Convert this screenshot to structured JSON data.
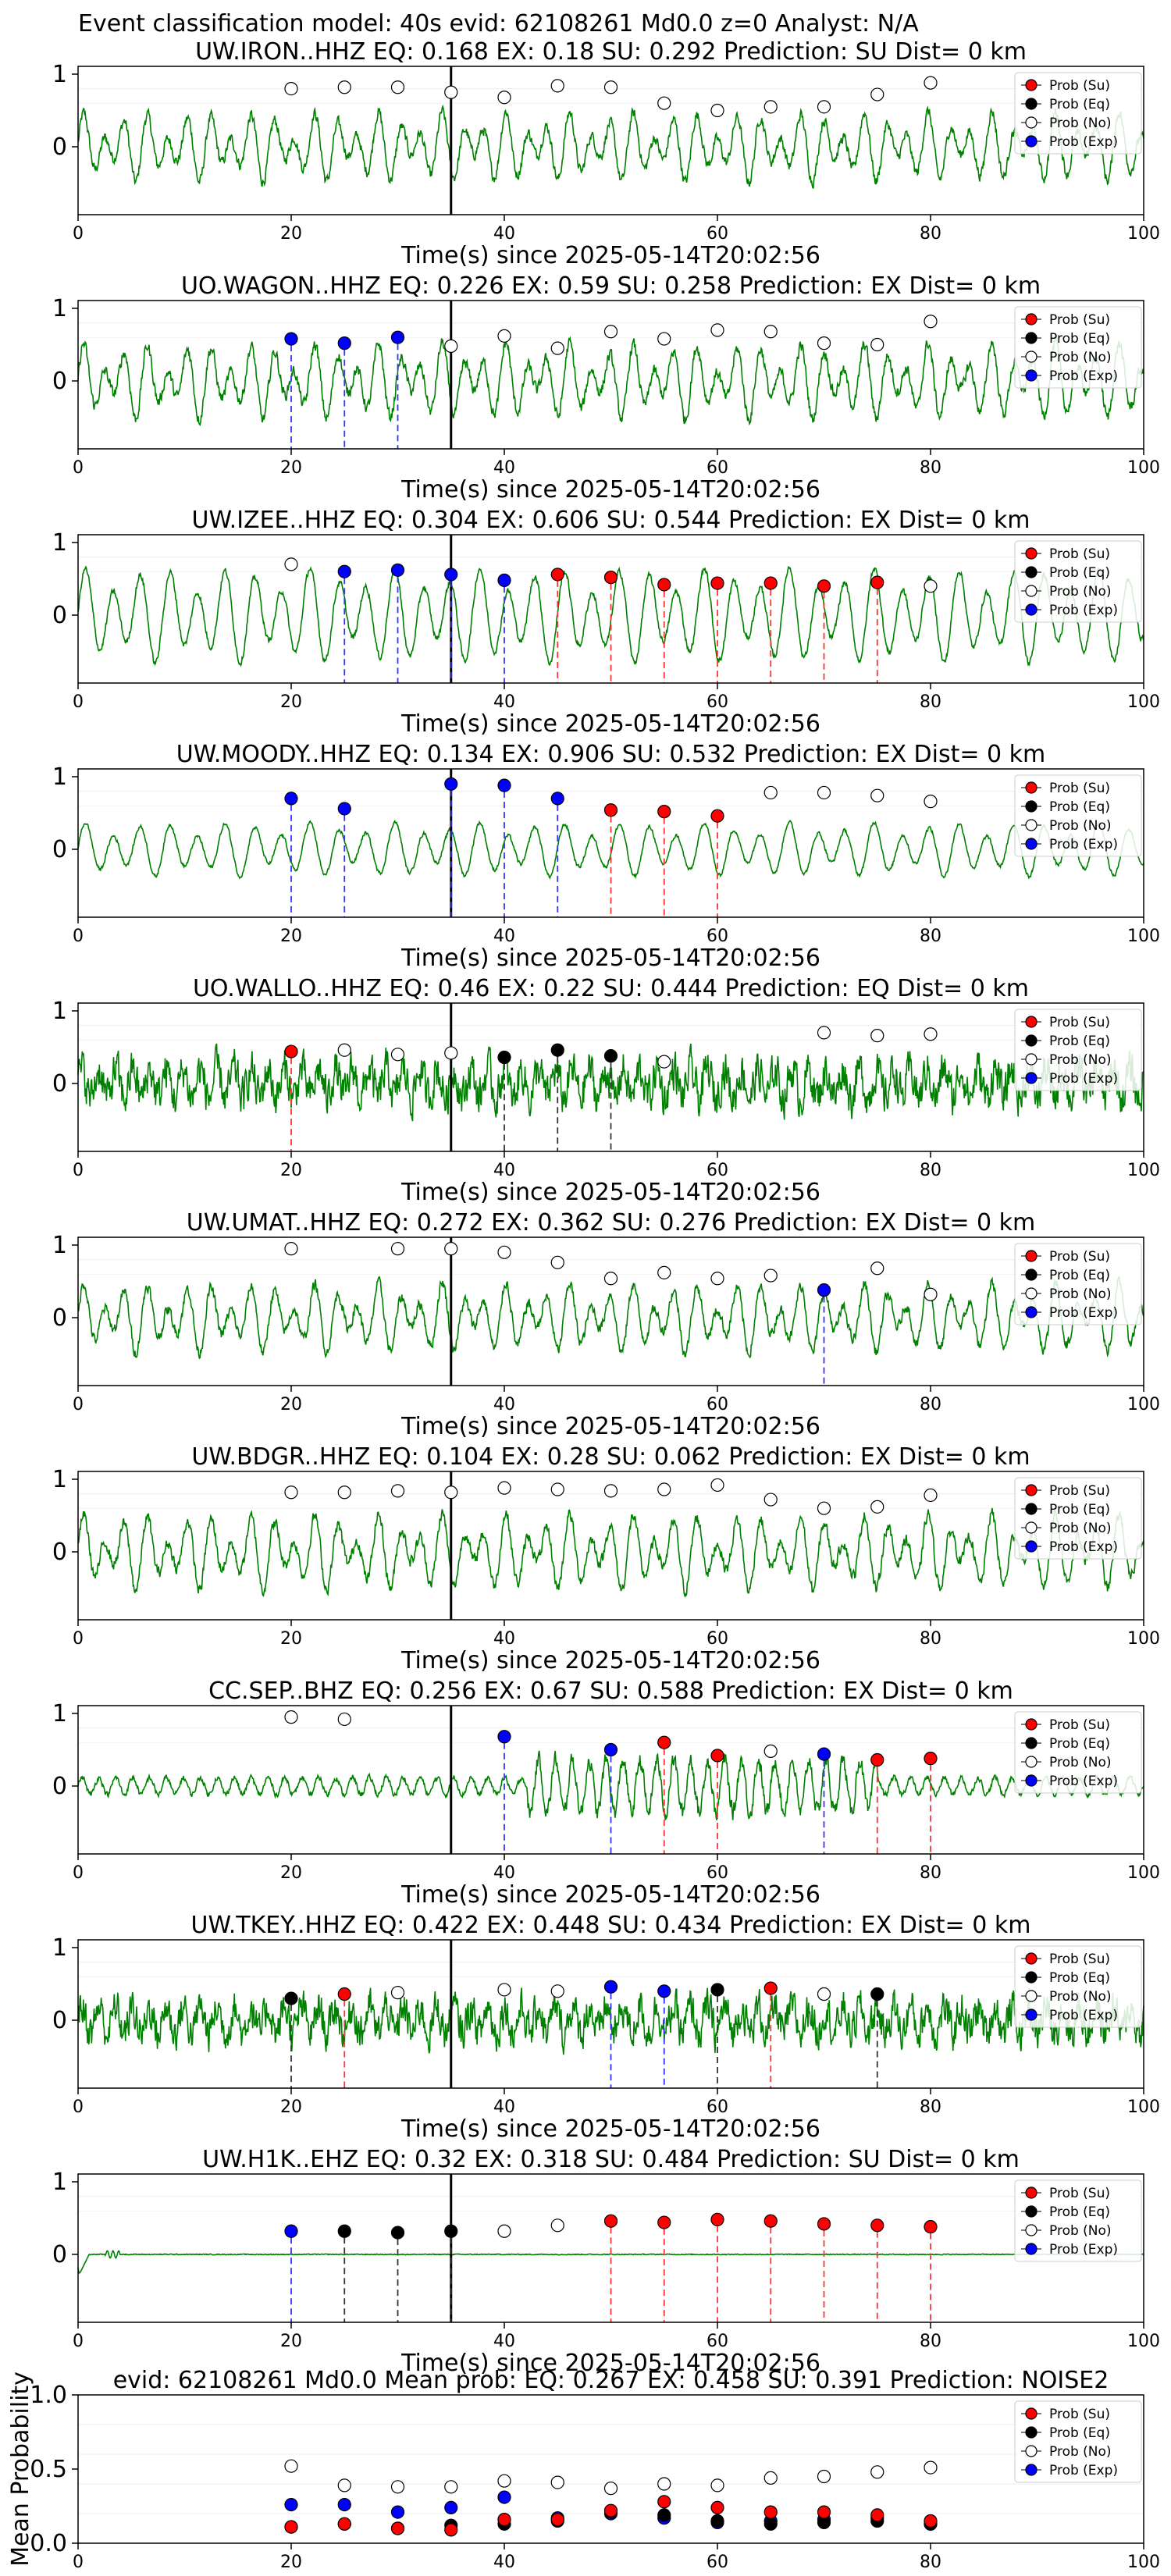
{
  "figure_title": "Event classification model: 40s evid: 62108261 Md0.0 z=0 Analyst: N/A",
  "xlabel": "Time(s) since 2025-05-14T20:02:56",
  "legend": [
    "Prob (Su)",
    "Prob (Eq)",
    "Prob (No)",
    "Prob (Exp)"
  ],
  "colors": {
    "su": "#ff0000",
    "eq": "#000000",
    "no": "#ffffff",
    "exp": "#0000ff",
    "waveform": "#008000",
    "su_line": "#ff3333",
    "eq_line": "#333333",
    "exp_line": "#3333ff",
    "pick": "#000000"
  },
  "chart_data": [
    {
      "type": "line",
      "title": "UW.IRON..HHZ   EQ: 0.168  EX: 0.18  SU: 0.292   Prediction: SU    Dist= 0 km",
      "xlim": [
        0,
        100
      ],
      "xticks": [
        0,
        20,
        40,
        60,
        80,
        100
      ],
      "yticks": [
        0,
        1
      ],
      "pick_time": 35,
      "amplitude": 0.55,
      "waveform_style": "mixed",
      "points": [
        {
          "x": 20,
          "y": 0.8,
          "c": "no"
        },
        {
          "x": 25,
          "y": 0.82,
          "c": "no"
        },
        {
          "x": 30,
          "y": 0.82,
          "c": "no"
        },
        {
          "x": 35,
          "y": 0.75,
          "c": "no"
        },
        {
          "x": 40,
          "y": 0.68,
          "c": "no"
        },
        {
          "x": 45,
          "y": 0.84,
          "c": "no"
        },
        {
          "x": 50,
          "y": 0.82,
          "c": "no"
        },
        {
          "x": 55,
          "y": 0.6,
          "c": "no"
        },
        {
          "x": 60,
          "y": 0.5,
          "c": "no"
        },
        {
          "x": 65,
          "y": 0.55,
          "c": "no"
        },
        {
          "x": 70,
          "y": 0.55,
          "c": "no"
        },
        {
          "x": 75,
          "y": 0.72,
          "c": "no"
        },
        {
          "x": 80,
          "y": 0.88,
          "c": "no"
        }
      ]
    },
    {
      "type": "line",
      "title": "UO.WAGON..HHZ   EQ: 0.226  EX: 0.59  SU: 0.258   Prediction: EX    Dist= 0 km",
      "xlim": [
        0,
        100
      ],
      "xticks": [
        0,
        20,
        40,
        60,
        80,
        100
      ],
      "yticks": [
        0,
        1
      ],
      "pick_time": 35,
      "amplitude": 0.6,
      "waveform_style": "mixed",
      "points": [
        {
          "x": 20,
          "y": 0.58,
          "c": "exp"
        },
        {
          "x": 25,
          "y": 0.52,
          "c": "exp"
        },
        {
          "x": 30,
          "y": 0.6,
          "c": "exp"
        },
        {
          "x": 35,
          "y": 0.48,
          "c": "no"
        },
        {
          "x": 40,
          "y": 0.62,
          "c": "no"
        },
        {
          "x": 45,
          "y": 0.45,
          "c": "no"
        },
        {
          "x": 50,
          "y": 0.68,
          "c": "no"
        },
        {
          "x": 55,
          "y": 0.58,
          "c": "no"
        },
        {
          "x": 60,
          "y": 0.7,
          "c": "no"
        },
        {
          "x": 65,
          "y": 0.68,
          "c": "no"
        },
        {
          "x": 70,
          "y": 0.52,
          "c": "no"
        },
        {
          "x": 75,
          "y": 0.5,
          "c": "no"
        },
        {
          "x": 80,
          "y": 0.82,
          "c": "no"
        }
      ]
    },
    {
      "type": "line",
      "title": "UW.IZEE..HHZ   EQ: 0.304  EX: 0.606  SU: 0.544   Prediction: EX    Dist= 0 km",
      "xlim": [
        0,
        100
      ],
      "xticks": [
        0,
        20,
        40,
        60,
        80,
        100
      ],
      "yticks": [
        0,
        1
      ],
      "pick_time": 35,
      "amplitude": 0.7,
      "waveform_style": "smooth",
      "points": [
        {
          "x": 20,
          "y": 0.7,
          "c": "no"
        },
        {
          "x": 25,
          "y": 0.6,
          "c": "exp"
        },
        {
          "x": 30,
          "y": 0.62,
          "c": "exp"
        },
        {
          "x": 35,
          "y": 0.56,
          "c": "exp"
        },
        {
          "x": 40,
          "y": 0.48,
          "c": "exp"
        },
        {
          "x": 45,
          "y": 0.56,
          "c": "su"
        },
        {
          "x": 50,
          "y": 0.52,
          "c": "su"
        },
        {
          "x": 55,
          "y": 0.42,
          "c": "su"
        },
        {
          "x": 60,
          "y": 0.44,
          "c": "su"
        },
        {
          "x": 65,
          "y": 0.44,
          "c": "su"
        },
        {
          "x": 70,
          "y": 0.4,
          "c": "su"
        },
        {
          "x": 75,
          "y": 0.45,
          "c": "su"
        },
        {
          "x": 80,
          "y": 0.4,
          "c": "no"
        }
      ]
    },
    {
      "type": "line",
      "title": "UW.MOODY..HHZ   EQ: 0.134  EX: 0.906  SU: 0.532   Prediction: EX    Dist= 0 km",
      "xlim": [
        0,
        100
      ],
      "xticks": [
        0,
        20,
        40,
        60,
        80,
        100
      ],
      "yticks": [
        0,
        1
      ],
      "pick_time": 35,
      "amplitude": 0.4,
      "waveform_style": "smooth",
      "points": [
        {
          "x": 20,
          "y": 0.7,
          "c": "exp"
        },
        {
          "x": 25,
          "y": 0.56,
          "c": "exp"
        },
        {
          "x": 35,
          "y": 0.9,
          "c": "exp"
        },
        {
          "x": 40,
          "y": 0.88,
          "c": "exp"
        },
        {
          "x": 45,
          "y": 0.7,
          "c": "exp"
        },
        {
          "x": 50,
          "y": 0.54,
          "c": "su"
        },
        {
          "x": 55,
          "y": 0.52,
          "c": "su"
        },
        {
          "x": 60,
          "y": 0.46,
          "c": "su"
        },
        {
          "x": 65,
          "y": 0.78,
          "c": "no"
        },
        {
          "x": 70,
          "y": 0.78,
          "c": "no"
        },
        {
          "x": 75,
          "y": 0.74,
          "c": "no"
        },
        {
          "x": 80,
          "y": 0.66,
          "c": "no"
        }
      ]
    },
    {
      "type": "line",
      "title": "UO.WALLO..HHZ   EQ: 0.46  EX: 0.22  SU: 0.444   Prediction: EQ    Dist= 0 km",
      "xlim": [
        0,
        100
      ],
      "xticks": [
        0,
        20,
        40,
        60,
        80,
        100
      ],
      "yticks": [
        0,
        1
      ],
      "pick_time": 35,
      "amplitude": 0.8,
      "waveform_style": "noisy",
      "points": [
        {
          "x": 20,
          "y": 0.44,
          "c": "su"
        },
        {
          "x": 25,
          "y": 0.46,
          "c": "no"
        },
        {
          "x": 30,
          "y": 0.4,
          "c": "no"
        },
        {
          "x": 35,
          "y": 0.42,
          "c": "no"
        },
        {
          "x": 40,
          "y": 0.36,
          "c": "eq"
        },
        {
          "x": 45,
          "y": 0.46,
          "c": "eq"
        },
        {
          "x": 50,
          "y": 0.38,
          "c": "eq"
        },
        {
          "x": 55,
          "y": 0.3,
          "c": "no"
        },
        {
          "x": 70,
          "y": 0.7,
          "c": "no"
        },
        {
          "x": 75,
          "y": 0.66,
          "c": "no"
        },
        {
          "x": 80,
          "y": 0.68,
          "c": "no"
        }
      ]
    },
    {
      "type": "line",
      "title": "UW.UMAT..HHZ   EQ: 0.272  EX: 0.362  SU: 0.276   Prediction: EX    Dist= 0 km",
      "xlim": [
        0,
        100
      ],
      "xticks": [
        0,
        20,
        40,
        60,
        80,
        100
      ],
      "yticks": [
        0,
        1
      ],
      "pick_time": 35,
      "amplitude": 0.55,
      "waveform_style": "mixed",
      "points": [
        {
          "x": 20,
          "y": 0.95,
          "c": "no"
        },
        {
          "x": 30,
          "y": 0.95,
          "c": "no"
        },
        {
          "x": 35,
          "y": 0.95,
          "c": "no"
        },
        {
          "x": 40,
          "y": 0.9,
          "c": "no"
        },
        {
          "x": 45,
          "y": 0.76,
          "c": "no"
        },
        {
          "x": 50,
          "y": 0.54,
          "c": "no"
        },
        {
          "x": 55,
          "y": 0.62,
          "c": "no"
        },
        {
          "x": 60,
          "y": 0.54,
          "c": "no"
        },
        {
          "x": 65,
          "y": 0.58,
          "c": "no"
        },
        {
          "x": 70,
          "y": 0.38,
          "c": "exp"
        },
        {
          "x": 75,
          "y": 0.68,
          "c": "no"
        },
        {
          "x": 80,
          "y": 0.32,
          "c": "no"
        }
      ]
    },
    {
      "type": "line",
      "title": "UW.BDGR..HHZ   EQ: 0.104  EX: 0.28  SU: 0.062   Prediction: EX    Dist= 0 km",
      "xlim": [
        0,
        100
      ],
      "xticks": [
        0,
        20,
        40,
        60,
        80,
        100
      ],
      "yticks": [
        0,
        1
      ],
      "pick_time": 35,
      "amplitude": 0.6,
      "waveform_style": "mixed",
      "points": [
        {
          "x": 20,
          "y": 0.82,
          "c": "no"
        },
        {
          "x": 25,
          "y": 0.82,
          "c": "no"
        },
        {
          "x": 30,
          "y": 0.84,
          "c": "no"
        },
        {
          "x": 35,
          "y": 0.82,
          "c": "no"
        },
        {
          "x": 40,
          "y": 0.88,
          "c": "no"
        },
        {
          "x": 45,
          "y": 0.86,
          "c": "no"
        },
        {
          "x": 50,
          "y": 0.84,
          "c": "no"
        },
        {
          "x": 55,
          "y": 0.86,
          "c": "no"
        },
        {
          "x": 60,
          "y": 0.92,
          "c": "no"
        },
        {
          "x": 65,
          "y": 0.72,
          "c": "no"
        },
        {
          "x": 70,
          "y": 0.6,
          "c": "no"
        },
        {
          "x": 75,
          "y": 0.62,
          "c": "no"
        },
        {
          "x": 80,
          "y": 0.78,
          "c": "no"
        }
      ]
    },
    {
      "type": "line",
      "title": "CC.SEP..BHZ   EQ: 0.256  EX: 0.67  SU: 0.588   Prediction: EX    Dist= 0 km",
      "xlim": [
        0,
        100
      ],
      "xticks": [
        0,
        20,
        40,
        60,
        80,
        100
      ],
      "yticks": [
        0,
        1
      ],
      "pick_time": 35,
      "amplitude": 0.3,
      "waveform_style": "burst",
      "points": [
        {
          "x": 20,
          "y": 0.95,
          "c": "no"
        },
        {
          "x": 25,
          "y": 0.92,
          "c": "no"
        },
        {
          "x": 40,
          "y": 0.68,
          "c": "exp"
        },
        {
          "x": 50,
          "y": 0.5,
          "c": "exp"
        },
        {
          "x": 55,
          "y": 0.6,
          "c": "su"
        },
        {
          "x": 60,
          "y": 0.42,
          "c": "su"
        },
        {
          "x": 65,
          "y": 0.48,
          "c": "no"
        },
        {
          "x": 70,
          "y": 0.44,
          "c": "exp"
        },
        {
          "x": 75,
          "y": 0.36,
          "c": "su"
        },
        {
          "x": 80,
          "y": 0.38,
          "c": "su"
        }
      ]
    },
    {
      "type": "line",
      "title": "UW.TKEY..HHZ   EQ: 0.422  EX: 0.448  SU: 0.434   Prediction: EX    Dist= 0 km",
      "xlim": [
        0,
        100
      ],
      "xticks": [
        0,
        20,
        40,
        60,
        80,
        100
      ],
      "yticks": [
        0,
        1
      ],
      "pick_time": 35,
      "amplitude": 0.75,
      "waveform_style": "noisy",
      "points": [
        {
          "x": 20,
          "y": 0.3,
          "c": "eq"
        },
        {
          "x": 25,
          "y": 0.36,
          "c": "su"
        },
        {
          "x": 30,
          "y": 0.38,
          "c": "no"
        },
        {
          "x": 40,
          "y": 0.42,
          "c": "no"
        },
        {
          "x": 45,
          "y": 0.4,
          "c": "no"
        },
        {
          "x": 50,
          "y": 0.46,
          "c": "exp"
        },
        {
          "x": 55,
          "y": 0.4,
          "c": "exp"
        },
        {
          "x": 60,
          "y": 0.42,
          "c": "eq"
        },
        {
          "x": 65,
          "y": 0.44,
          "c": "su"
        },
        {
          "x": 70,
          "y": 0.36,
          "c": "no"
        },
        {
          "x": 75,
          "y": 0.36,
          "c": "eq"
        }
      ]
    },
    {
      "type": "line",
      "title": "UW.H1K..EHZ   EQ: 0.32  EX: 0.318  SU: 0.484   Prediction: SU    Dist= 0 km",
      "xlim": [
        0,
        100
      ],
      "xticks": [
        0,
        20,
        40,
        60,
        80,
        100
      ],
      "yticks": [
        0,
        1
      ],
      "pick_time": 35,
      "amplitude": 0.05,
      "waveform_style": "flat",
      "points": [
        {
          "x": 20,
          "y": 0.32,
          "c": "exp"
        },
        {
          "x": 25,
          "y": 0.32,
          "c": "eq"
        },
        {
          "x": 30,
          "y": 0.3,
          "c": "eq"
        },
        {
          "x": 35,
          "y": 0.32,
          "c": "eq"
        },
        {
          "x": 40,
          "y": 0.32,
          "c": "no"
        },
        {
          "x": 45,
          "y": 0.4,
          "c": "no"
        },
        {
          "x": 50,
          "y": 0.46,
          "c": "su"
        },
        {
          "x": 55,
          "y": 0.44,
          "c": "su"
        },
        {
          "x": 60,
          "y": 0.48,
          "c": "su"
        },
        {
          "x": 65,
          "y": 0.46,
          "c": "su"
        },
        {
          "x": 70,
          "y": 0.42,
          "c": "su"
        },
        {
          "x": 75,
          "y": 0.4,
          "c": "su"
        },
        {
          "x": 80,
          "y": 0.38,
          "c": "su"
        }
      ]
    },
    {
      "type": "scatter",
      "title": "evid: 62108261  Md0.0   Mean prob:   EQ: 0.267  EX: 0.458  SU: 0.391   Prediction: NOISE2",
      "ylabel": "Mean Probability",
      "xlim": [
        0,
        100
      ],
      "ylim": [
        0,
        1
      ],
      "xticks": [
        0,
        20,
        40,
        60,
        80,
        100
      ],
      "yticks": [
        0,
        0.5,
        1.0
      ],
      "ytick_labels": [
        "0.0",
        "0.5",
        "1.0"
      ],
      "x": [
        20,
        25,
        30,
        35,
        40,
        45,
        50,
        55,
        60,
        65,
        70,
        75,
        80
      ],
      "series": [
        {
          "name": "Prob (No)",
          "c": "no",
          "values": [
            0.52,
            0.39,
            0.38,
            0.38,
            0.42,
            0.41,
            0.37,
            0.4,
            0.39,
            0.44,
            0.45,
            0.48,
            0.51
          ]
        },
        {
          "name": "Prob (Exp)",
          "c": "exp",
          "values": [
            0.26,
            0.26,
            0.21,
            0.24,
            0.31,
            0.17,
            0.2,
            0.17,
            0.14,
            0.15,
            0.16,
            0.17,
            0.13
          ]
        },
        {
          "name": "Prob (Eq)",
          "c": "eq",
          "values": [
            0.11,
            0.13,
            0.1,
            0.12,
            0.13,
            0.15,
            0.21,
            0.19,
            0.15,
            0.13,
            0.14,
            0.15,
            0.13
          ]
        },
        {
          "name": "Prob (Su)",
          "c": "su",
          "values": [
            0.11,
            0.13,
            0.1,
            0.09,
            0.16,
            0.16,
            0.22,
            0.28,
            0.24,
            0.21,
            0.21,
            0.19,
            0.15
          ]
        }
      ]
    }
  ]
}
